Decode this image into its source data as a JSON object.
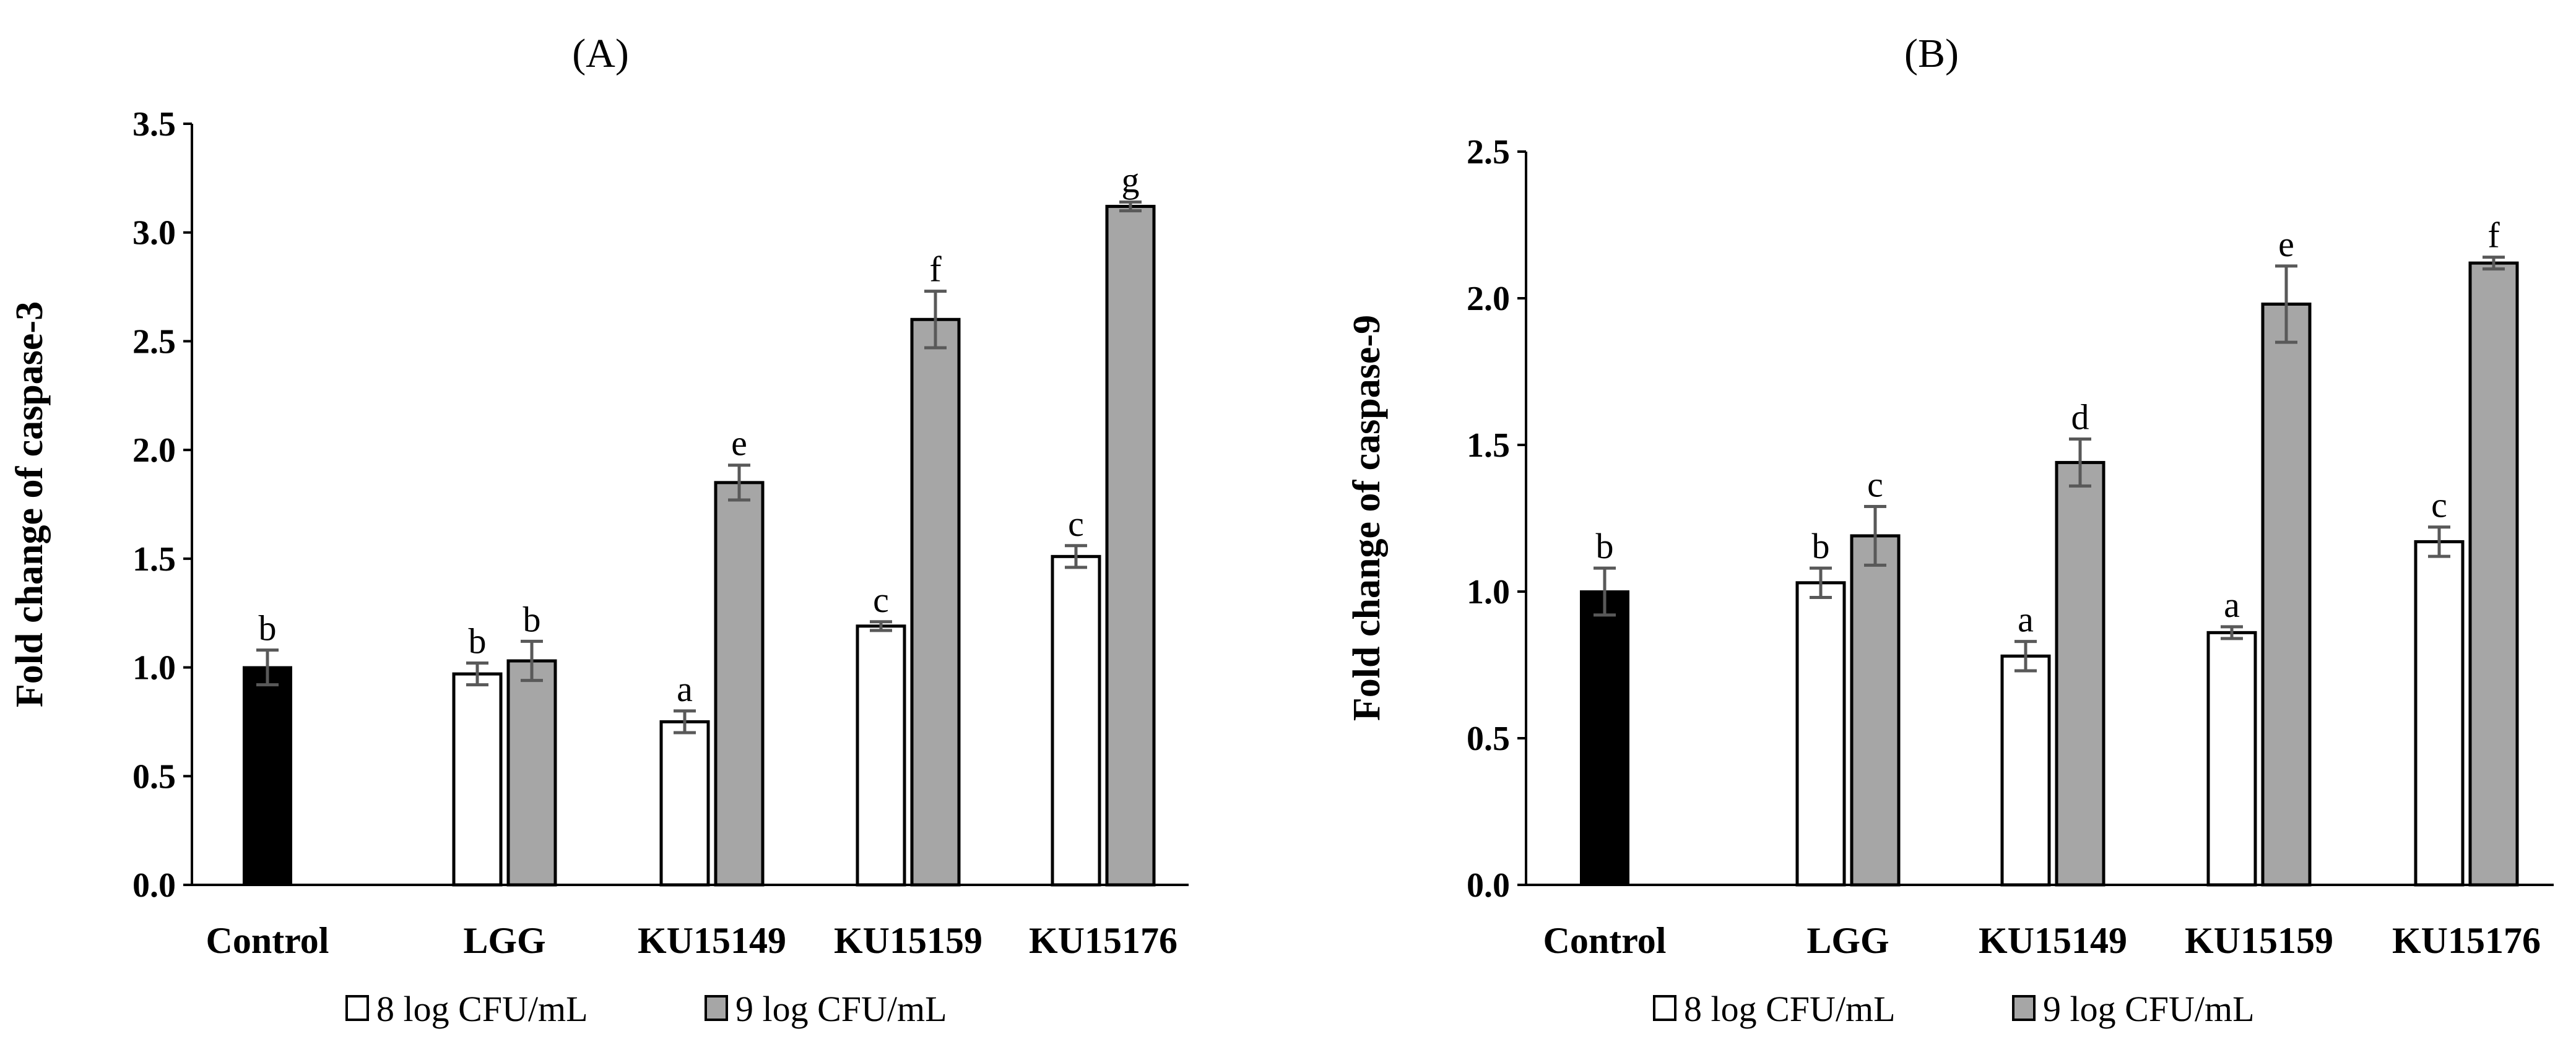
{
  "chart_data": [
    {
      "type": "bar",
      "panel": "A",
      "title": "(A)",
      "ylabel": "Fold change of caspase-3",
      "xlabel": "",
      "ylim": [
        0,
        3.5
      ],
      "yticks": [
        "0.0",
        "0.5",
        "1.0",
        "1.5",
        "2.0",
        "2.5",
        "3.0",
        "3.5"
      ],
      "ytick_values": [
        0,
        0.5,
        1.0,
        1.5,
        2.0,
        2.5,
        3.0,
        3.5
      ],
      "categories": [
        "Control",
        "LGG",
        "KU15149",
        "KU15159",
        "KU15176"
      ],
      "control": {
        "value": 1.0,
        "error": 0.08,
        "label": "b"
      },
      "series": [
        {
          "name": "8 log CFU/mL",
          "color": "#ffffff",
          "values": [
            null,
            0.97,
            0.75,
            1.19,
            1.51
          ],
          "errors": [
            null,
            0.05,
            0.05,
            0.02,
            0.05
          ],
          "labels": [
            null,
            "b",
            "a",
            "c",
            "c"
          ]
        },
        {
          "name": "9 log CFU/mL",
          "color": "#a6a6a6",
          "values": [
            null,
            1.03,
            1.85,
            2.6,
            3.12
          ],
          "errors": [
            null,
            0.09,
            0.08,
            0.13,
            0.02
          ],
          "labels": [
            null,
            "b",
            "e",
            "f",
            "g"
          ]
        }
      ],
      "legend": [
        "8 log CFU/mL",
        "9 log CFU/mL"
      ]
    },
    {
      "type": "bar",
      "panel": "B",
      "title": "(B)",
      "ylabel": "Fold change of caspase-9",
      "xlabel": "",
      "ylim": [
        0,
        2.5
      ],
      "yticks": [
        "0.0",
        "0.5",
        "1.0",
        "1.5",
        "2.0",
        "2.5"
      ],
      "ytick_values": [
        0,
        0.5,
        1.0,
        1.5,
        2.0,
        2.5
      ],
      "categories": [
        "Control",
        "LGG",
        "KU15149",
        "KU15159",
        "KU15176"
      ],
      "control": {
        "value": 1.0,
        "error": 0.08,
        "label": "b"
      },
      "series": [
        {
          "name": "8 log CFU/mL",
          "color": "#ffffff",
          "values": [
            null,
            1.03,
            0.78,
            0.86,
            1.17
          ],
          "errors": [
            null,
            0.05,
            0.05,
            0.02,
            0.05
          ],
          "labels": [
            null,
            "b",
            "a",
            "a",
            "c"
          ]
        },
        {
          "name": "9 log CFU/mL",
          "color": "#a6a6a6",
          "values": [
            null,
            1.19,
            1.44,
            1.98,
            2.12
          ],
          "errors": [
            null,
            0.1,
            0.08,
            0.13,
            0.02
          ],
          "labels": [
            null,
            "c",
            "d",
            "e",
            "f"
          ]
        }
      ],
      "legend": [
        "8 log CFU/mL",
        "9 log CFU/mL"
      ]
    }
  ]
}
